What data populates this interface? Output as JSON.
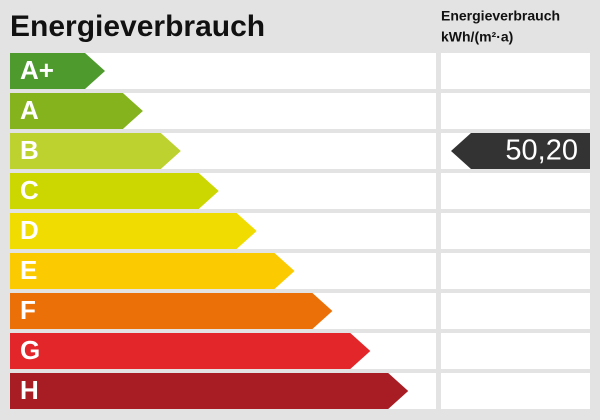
{
  "title": "Energieverbrauch",
  "value_header": [
    "Energieverbrauch",
    "kWh/(m²·a)"
  ],
  "classes": [
    {
      "label": "A+",
      "color": "#4e9a2d"
    },
    {
      "label": "A",
      "color": "#84b31e"
    },
    {
      "label": "B",
      "color": "#bdd12f",
      "value": "50,20"
    },
    {
      "label": "C",
      "color": "#ccd600"
    },
    {
      "label": "D",
      "color": "#f0dc00"
    },
    {
      "label": "E",
      "color": "#fcca00"
    },
    {
      "label": "F",
      "color": "#ec7008"
    },
    {
      "label": "G",
      "color": "#e2262a"
    },
    {
      "label": "H",
      "color": "#a81c24"
    }
  ]
}
